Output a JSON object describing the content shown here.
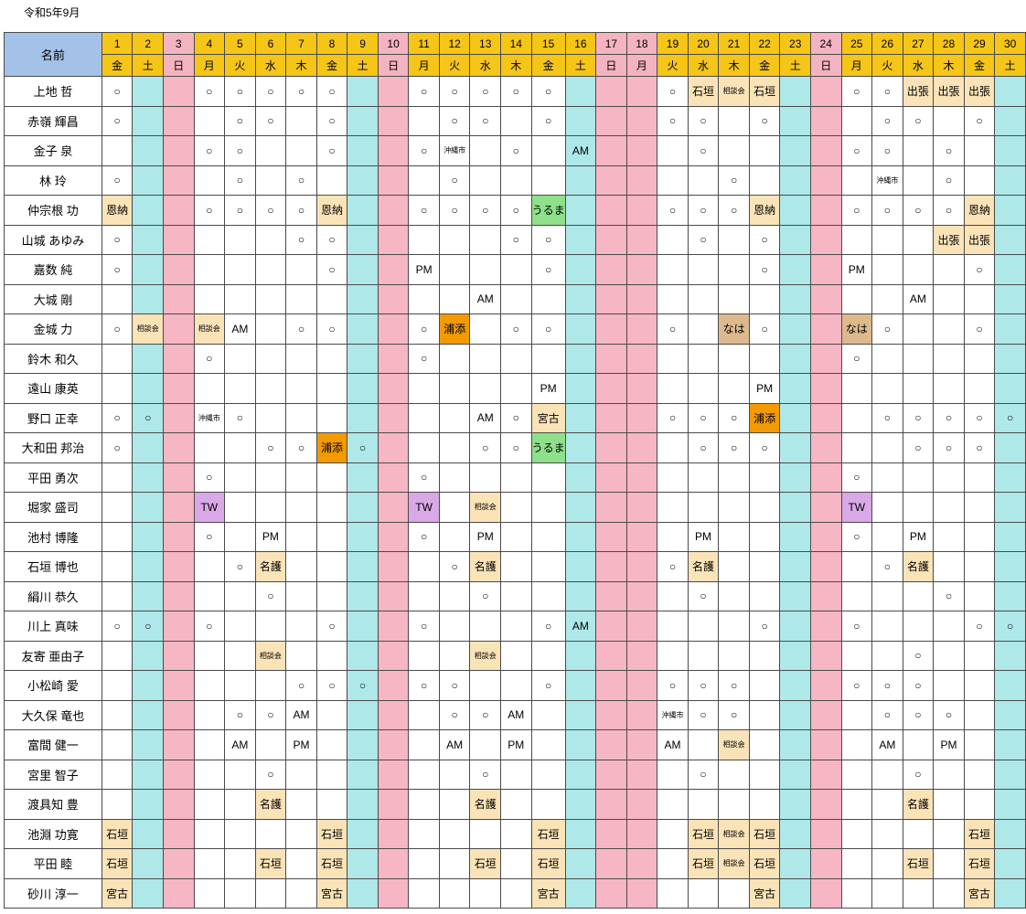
{
  "title": "令和5年9月",
  "header": {
    "name_label": "名前",
    "days": [
      "1",
      "2",
      "3",
      "4",
      "5",
      "6",
      "7",
      "8",
      "9",
      "10",
      "11",
      "12",
      "13",
      "14",
      "15",
      "16",
      "17",
      "18",
      "19",
      "20",
      "21",
      "22",
      "23",
      "24",
      "25",
      "26",
      "27",
      "28",
      "29",
      "30"
    ],
    "weekdays": [
      "金",
      "土",
      "日",
      "月",
      "火",
      "水",
      "木",
      "金",
      "土",
      "日",
      "月",
      "火",
      "水",
      "木",
      "金",
      "土",
      "日",
      "月",
      "火",
      "水",
      "木",
      "金",
      "土",
      "日",
      "月",
      "火",
      "水",
      "木",
      "金",
      "土"
    ]
  },
  "colors": {
    "header_day": "#f5c518",
    "header_name": "#a4c2e8",
    "saturday": "#aee8e8",
    "sunday": "#f7b6c4",
    "beige": "#fbe3b8",
    "orange": "#f29a00",
    "green": "#8fe08a",
    "purple": "#d9a8e6",
    "tan": "#ddb98d"
  },
  "rows": [
    {
      "name": "上地 哲",
      "cells": [
        "○",
        "",
        "",
        "○",
        "○",
        "○",
        "○",
        "○",
        "",
        "",
        "○",
        "○",
        "○",
        "○",
        "○",
        "",
        "",
        "",
        "○",
        "石垣",
        "相談会",
        "石垣",
        "",
        "",
        "○",
        "○",
        "出張",
        "出張",
        "出張",
        ""
      ]
    },
    {
      "name": "赤嶺 輝昌",
      "cells": [
        "○",
        "",
        "",
        "",
        "○",
        "○",
        "",
        "○",
        "",
        "",
        "",
        "○",
        "○",
        "",
        "○",
        "",
        "",
        "",
        "○",
        "○",
        "",
        "○",
        "",
        "",
        "",
        "○",
        "○",
        "",
        "○",
        ""
      ]
    },
    {
      "name": "金子 泉",
      "cells": [
        "",
        "",
        "",
        "○",
        "○",
        "",
        "",
        "○",
        "",
        "",
        "○",
        "沖縄市",
        "",
        "○",
        "",
        "AM",
        "",
        "",
        "",
        "○",
        "",
        "",
        "",
        "",
        "○",
        "○",
        "",
        "○",
        "",
        ""
      ]
    },
    {
      "name": "林 玲",
      "cells": [
        "○",
        "",
        "",
        "",
        "○",
        "",
        "○",
        "",
        "",
        "",
        "",
        "○",
        "",
        "",
        "",
        "",
        "",
        "",
        "",
        "",
        "○",
        "",
        "",
        "",
        "",
        "沖縄市",
        "",
        "○",
        "",
        ""
      ]
    },
    {
      "name": "仲宗根 功",
      "cells": [
        "恩納",
        "",
        "",
        "○",
        "○",
        "○",
        "○",
        "恩納",
        "",
        "",
        "○",
        "○",
        "○",
        "○",
        "うるま",
        "",
        "",
        "",
        "○",
        "○",
        "○",
        "恩納",
        "",
        "",
        "○",
        "○",
        "○",
        "○",
        "恩納",
        ""
      ]
    },
    {
      "name": "山城 あゆみ",
      "cells": [
        "○",
        "",
        "",
        "",
        "",
        "",
        "○",
        "○",
        "",
        "",
        "",
        "",
        "",
        "○",
        "○",
        "",
        "",
        "",
        "",
        "○",
        "",
        "○",
        "",
        "",
        "",
        "",
        "",
        "出張",
        "出張",
        ""
      ]
    },
    {
      "name": "嘉数 純",
      "cells": [
        "○",
        "",
        "",
        "",
        "",
        "",
        "",
        "○",
        "",
        "",
        "PM",
        "",
        "",
        "",
        "○",
        "",
        "",
        "",
        "",
        "",
        "",
        "○",
        "",
        "",
        "PM",
        "",
        "",
        "",
        "○",
        ""
      ]
    },
    {
      "name": "大城 剛",
      "cells": [
        "",
        "",
        "",
        "",
        "",
        "",
        "",
        "",
        "",
        "",
        "",
        "",
        "AM",
        "",
        "",
        "",
        "",
        "",
        "",
        "",
        "",
        "",
        "",
        "",
        "",
        "",
        "AM",
        "",
        "",
        ""
      ]
    },
    {
      "name": "金城 力",
      "cells": [
        "○",
        "相談会",
        "",
        "相談会",
        "AM",
        "",
        "○",
        "○",
        "",
        "",
        "○",
        "浦添",
        "",
        "○",
        "○",
        "",
        "",
        "",
        "○",
        "",
        "なは",
        "○",
        "",
        "",
        "なは",
        "○",
        "",
        "",
        "○",
        ""
      ]
    },
    {
      "name": "鈴木 和久",
      "cells": [
        "",
        "",
        "",
        "○",
        "",
        "",
        "",
        "",
        "",
        "",
        "○",
        "",
        "",
        "",
        "",
        "",
        "",
        "",
        "",
        "",
        "",
        "",
        "",
        "",
        "○",
        "",
        "",
        "",
        "",
        ""
      ]
    },
    {
      "name": "遠山 康英",
      "cells": [
        "",
        "",
        "",
        "",
        "",
        "",
        "",
        "",
        "",
        "",
        "",
        "",
        "",
        "",
        "PM",
        "",
        "",
        "",
        "",
        "",
        "",
        "PM",
        "",
        "",
        "",
        "",
        "",
        "",
        "",
        ""
      ]
    },
    {
      "name": "野口 正幸",
      "cells": [
        "○",
        "○",
        "",
        "沖縄市",
        "○",
        "",
        "",
        "",
        "",
        "",
        "",
        "",
        "AM",
        "○",
        "宮古",
        "",
        "",
        "",
        "○",
        "○",
        "○",
        "浦添",
        "",
        "",
        "",
        "○",
        "○",
        "○",
        "○",
        "○"
      ]
    },
    {
      "name": "大和田 邦治",
      "cells": [
        "○",
        "",
        "",
        "",
        "",
        "○",
        "○",
        "浦添",
        "○",
        "",
        "",
        "",
        "○",
        "○",
        "うるま",
        "",
        "",
        "",
        "",
        "○",
        "○",
        "○",
        "",
        "",
        "",
        "",
        "○",
        "○",
        "○",
        ""
      ]
    },
    {
      "name": "平田 勇次",
      "cells": [
        "",
        "",
        "",
        "○",
        "",
        "",
        "",
        "",
        "",
        "",
        "○",
        "",
        "",
        "",
        "",
        "",
        "",
        "",
        "",
        "",
        "",
        "",
        "",
        "",
        "○",
        "",
        "",
        "",
        "",
        ""
      ]
    },
    {
      "name": "堀家 盛司",
      "cells": [
        "",
        "",
        "",
        "TW",
        "",
        "",
        "",
        "",
        "",
        "",
        "TW",
        "",
        "相談会",
        "",
        "",
        "",
        "",
        "",
        "",
        "",
        "",
        "",
        "",
        "",
        "TW",
        "",
        "",
        "",
        "",
        ""
      ]
    },
    {
      "name": "池村 博隆",
      "cells": [
        "",
        "",
        "",
        "○",
        "",
        "PM",
        "",
        "",
        "",
        "",
        "○",
        "",
        "PM",
        "",
        "",
        "",
        "",
        "",
        "",
        "PM",
        "",
        "",
        "",
        "",
        "○",
        "",
        "PM",
        "",
        "",
        ""
      ]
    },
    {
      "name": "石垣 博也",
      "cells": [
        "",
        "",
        "",
        "",
        "○",
        "名護",
        "",
        "",
        "",
        "",
        "",
        "○",
        "名護",
        "",
        "",
        "",
        "",
        "",
        "○",
        "名護",
        "",
        "",
        "",
        "",
        "",
        "○",
        "名護",
        "",
        "",
        ""
      ]
    },
    {
      "name": "絹川 恭久",
      "cells": [
        "",
        "",
        "",
        "",
        "",
        "○",
        "",
        "",
        "",
        "",
        "",
        "",
        "○",
        "",
        "",
        "",
        "",
        "",
        "",
        "○",
        "",
        "",
        "",
        "",
        "",
        "",
        "",
        "○",
        "",
        ""
      ]
    },
    {
      "name": "川上 真味",
      "cells": [
        "○",
        "○",
        "",
        "○",
        "",
        "",
        "",
        "○",
        "",
        "",
        "○",
        "",
        "",
        "",
        "○",
        "AM",
        "",
        "",
        "",
        "",
        "",
        "○",
        "",
        "",
        "○",
        "",
        "",
        "",
        "○",
        "○"
      ]
    },
    {
      "name": "友寄 亜由子",
      "cells": [
        "",
        "",
        "",
        "",
        "",
        "相談会",
        "",
        "",
        "",
        "",
        "",
        "",
        "相談会",
        "",
        "",
        "",
        "",
        "",
        "",
        "",
        "",
        "",
        "",
        "",
        "",
        "",
        "○",
        "",
        "",
        ""
      ]
    },
    {
      "name": "小松崎 愛",
      "cells": [
        "",
        "",
        "",
        "",
        "",
        "",
        "○",
        "○",
        "○",
        "",
        "○",
        "○",
        "",
        "",
        "○",
        "",
        "",
        "",
        "○",
        "○",
        "○",
        "",
        "",
        "",
        "○",
        "○",
        "○",
        "",
        "",
        ""
      ]
    },
    {
      "name": "大久保 竜也",
      "cells": [
        "",
        "",
        "",
        "",
        "○",
        "○",
        "AM",
        "",
        "",
        "",
        "",
        "○",
        "○",
        "AM",
        "",
        "",
        "",
        "",
        "沖縄市",
        "○",
        "○",
        "",
        "",
        "",
        "",
        "○",
        "○",
        "○",
        "",
        ""
      ]
    },
    {
      "name": "富間 健一",
      "cells": [
        "",
        "",
        "",
        "",
        "AM",
        "",
        "PM",
        "",
        "",
        "",
        "",
        "AM",
        "",
        "PM",
        "",
        "",
        "",
        "",
        "AM",
        "",
        "相談会",
        "",
        "",
        "",
        "",
        "AM",
        "",
        "PM",
        "",
        ""
      ]
    },
    {
      "name": "宮里 智子",
      "cells": [
        "",
        "",
        "",
        "",
        "",
        "○",
        "",
        "",
        "",
        "",
        "",
        "",
        "○",
        "",
        "",
        "",
        "",
        "",
        "",
        "○",
        "",
        "",
        "",
        "",
        "",
        "",
        "○",
        "",
        "",
        ""
      ]
    },
    {
      "name": "渡具知 豊",
      "cells": [
        "",
        "",
        "",
        "",
        "",
        "名護",
        "",
        "",
        "",
        "",
        "",
        "",
        "名護",
        "",
        "",
        "",
        "",
        "",
        "",
        "",
        "",
        "",
        "",
        "",
        "",
        "",
        "名護",
        "",
        "",
        ""
      ]
    },
    {
      "name": "池淵 功寛",
      "cells": [
        "石垣",
        "",
        "",
        "",
        "",
        "",
        "",
        "石垣",
        "",
        "",
        "",
        "",
        "",
        "",
        "石垣",
        "",
        "",
        "",
        "",
        "石垣",
        "相談会",
        "石垣",
        "",
        "",
        "",
        "",
        "",
        "",
        "石垣",
        ""
      ]
    },
    {
      "name": "平田 睦",
      "cells": [
        "石垣",
        "",
        "",
        "",
        "",
        "石垣",
        "",
        "石垣",
        "",
        "",
        "",
        "",
        "石垣",
        "",
        "石垣",
        "",
        "",
        "",
        "",
        "石垣",
        "相談会",
        "石垣",
        "",
        "",
        "",
        "",
        "石垣",
        "",
        "石垣",
        ""
      ]
    },
    {
      "name": "砂川 淳一",
      "cells": [
        "宮古",
        "",
        "",
        "",
        "",
        "",
        "",
        "宮古",
        "",
        "",
        "",
        "",
        "",
        "",
        "宮古",
        "",
        "",
        "",
        "",
        "",
        "",
        "宮古",
        "",
        "",
        "",
        "",
        "",
        "",
        "宮古",
        ""
      ]
    }
  ]
}
